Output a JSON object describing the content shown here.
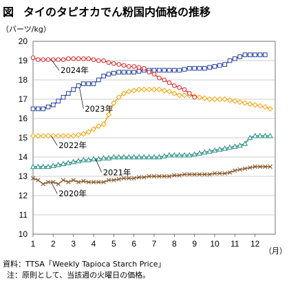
{
  "figure": {
    "label": "図",
    "title": "タイのタピオカでん粉国内価格の推移",
    "source_prefix": "資料：",
    "source": "TTSA「Weekly Tapioca Starch Price」",
    "note_prefix": "注：",
    "note": "原則として、当該週の火曜日の価格。"
  },
  "chart_data": {
    "type": "line",
    "title": "タイのタピオカでん粉国内価格の推移",
    "ylabel": "（バーツ/kg）",
    "xlabel": "（月）",
    "ylim": [
      10,
      20
    ],
    "yticks": [
      10,
      11,
      12,
      13,
      14,
      15,
      16,
      17,
      18,
      19,
      20
    ],
    "xlim": [
      1,
      13
    ],
    "xticks": [
      "1",
      "2",
      "3",
      "4",
      "5",
      "6",
      "7",
      "8",
      "9",
      "10",
      "11",
      "12"
    ],
    "grid": true,
    "legend": "inline labels",
    "series": [
      {
        "name": "2020年",
        "color": "#8B5A2B",
        "marker": "x",
        "points": [
          [
            1.0,
            12.9
          ],
          [
            1.25,
            12.8
          ],
          [
            1.5,
            12.6
          ],
          [
            1.75,
            12.7
          ],
          [
            2.0,
            12.7
          ],
          [
            2.25,
            12.6
          ],
          [
            2.5,
            12.8
          ],
          [
            2.75,
            12.7
          ],
          [
            3.0,
            12.8
          ],
          [
            3.25,
            12.7
          ],
          [
            3.5,
            12.75
          ],
          [
            3.75,
            12.7
          ],
          [
            4.0,
            12.7
          ],
          [
            4.25,
            12.7
          ],
          [
            4.5,
            12.7
          ],
          [
            4.75,
            12.8
          ],
          [
            5.0,
            12.8
          ],
          [
            5.25,
            12.85
          ],
          [
            5.5,
            12.9
          ],
          [
            5.75,
            12.9
          ],
          [
            6.0,
            12.9
          ],
          [
            6.25,
            12.95
          ],
          [
            6.5,
            12.95
          ],
          [
            6.75,
            13.0
          ],
          [
            7.0,
            13.0
          ],
          [
            7.25,
            13.0
          ],
          [
            7.5,
            13.0
          ],
          [
            7.75,
            13.0
          ],
          [
            8.0,
            13.05
          ],
          [
            8.25,
            13.05
          ],
          [
            8.5,
            13.1
          ],
          [
            8.75,
            13.1
          ],
          [
            9.0,
            13.1
          ],
          [
            9.25,
            13.1
          ],
          [
            9.5,
            13.1
          ],
          [
            9.75,
            13.1
          ],
          [
            10.0,
            13.15
          ],
          [
            10.25,
            13.15
          ],
          [
            10.5,
            13.15
          ],
          [
            10.75,
            13.2
          ],
          [
            11.0,
            13.3
          ],
          [
            11.25,
            13.35
          ],
          [
            11.5,
            13.4
          ],
          [
            11.75,
            13.45
          ],
          [
            12.0,
            13.5
          ],
          [
            12.25,
            13.5
          ],
          [
            12.5,
            13.5
          ],
          [
            12.75,
            13.5
          ]
        ]
      },
      {
        "name": "2021年",
        "color": "#1E8C7E",
        "marker": "triangle",
        "points": [
          [
            1.0,
            13.5
          ],
          [
            1.25,
            13.5
          ],
          [
            1.5,
            13.5
          ],
          [
            1.75,
            13.5
          ],
          [
            2.0,
            13.55
          ],
          [
            2.25,
            13.6
          ],
          [
            2.5,
            13.65
          ],
          [
            2.75,
            13.7
          ],
          [
            3.0,
            13.75
          ],
          [
            3.25,
            13.8
          ],
          [
            3.5,
            13.85
          ],
          [
            3.75,
            13.85
          ],
          [
            4.0,
            13.9
          ],
          [
            4.25,
            13.9
          ],
          [
            4.5,
            13.95
          ],
          [
            4.75,
            13.95
          ],
          [
            5.0,
            14.0
          ],
          [
            5.25,
            14.0
          ],
          [
            5.5,
            14.0
          ],
          [
            5.75,
            14.0
          ],
          [
            6.0,
            14.0
          ],
          [
            6.25,
            14.0
          ],
          [
            6.5,
            14.0
          ],
          [
            6.75,
            14.0
          ],
          [
            7.0,
            14.0
          ],
          [
            7.25,
            14.0
          ],
          [
            7.5,
            14.05
          ],
          [
            7.75,
            14.1
          ],
          [
            8.0,
            14.1
          ],
          [
            8.25,
            14.1
          ],
          [
            8.5,
            14.1
          ],
          [
            8.75,
            14.1
          ],
          [
            9.0,
            14.15
          ],
          [
            9.25,
            14.2
          ],
          [
            9.5,
            14.25
          ],
          [
            9.75,
            14.3
          ],
          [
            10.0,
            14.35
          ],
          [
            10.25,
            14.4
          ],
          [
            10.5,
            14.45
          ],
          [
            10.75,
            14.5
          ],
          [
            11.0,
            14.55
          ],
          [
            11.25,
            14.6
          ],
          [
            11.5,
            14.7
          ],
          [
            11.75,
            15.0
          ],
          [
            12.0,
            15.1
          ],
          [
            12.25,
            15.1
          ],
          [
            12.5,
            15.1
          ],
          [
            12.75,
            15.1
          ]
        ]
      },
      {
        "name": "2022年",
        "color": "#F5A000",
        "marker": "diamond",
        "points": [
          [
            1.0,
            15.1
          ],
          [
            1.25,
            15.1
          ],
          [
            1.5,
            15.1
          ],
          [
            1.75,
            15.1
          ],
          [
            2.0,
            15.1
          ],
          [
            2.25,
            15.1
          ],
          [
            2.5,
            15.1
          ],
          [
            2.75,
            15.1
          ],
          [
            3.0,
            15.1
          ],
          [
            3.25,
            15.15
          ],
          [
            3.5,
            15.2
          ],
          [
            3.75,
            15.3
          ],
          [
            4.0,
            15.45
          ],
          [
            4.25,
            15.6
          ],
          [
            4.5,
            15.7
          ],
          [
            4.75,
            16.2
          ],
          [
            5.0,
            16.8
          ],
          [
            5.25,
            17.1
          ],
          [
            5.5,
            17.3
          ],
          [
            5.75,
            17.4
          ],
          [
            6.0,
            17.45
          ],
          [
            6.25,
            17.5
          ],
          [
            6.5,
            17.5
          ],
          [
            6.75,
            17.5
          ],
          [
            7.0,
            17.5
          ],
          [
            7.25,
            17.5
          ],
          [
            7.5,
            17.45
          ],
          [
            7.75,
            17.4
          ],
          [
            8.0,
            17.3
          ],
          [
            8.25,
            17.2
          ],
          [
            8.5,
            17.2
          ],
          [
            8.75,
            17.2
          ],
          [
            9.0,
            17.15
          ],
          [
            9.25,
            17.1
          ],
          [
            9.5,
            17.05
          ],
          [
            9.75,
            17.0
          ],
          [
            10.0,
            17.0
          ],
          [
            10.25,
            17.0
          ],
          [
            10.5,
            17.0
          ],
          [
            10.75,
            16.95
          ],
          [
            11.0,
            16.9
          ],
          [
            11.25,
            16.85
          ],
          [
            11.5,
            16.8
          ],
          [
            11.75,
            16.75
          ],
          [
            12.0,
            16.7
          ],
          [
            12.25,
            16.65
          ],
          [
            12.5,
            16.6
          ],
          [
            12.75,
            16.5
          ]
        ]
      },
      {
        "name": "2023年",
        "color": "#1F3C9A",
        "marker": "square",
        "points": [
          [
            1.0,
            16.5
          ],
          [
            1.25,
            16.5
          ],
          [
            1.5,
            16.5
          ],
          [
            1.75,
            16.6
          ],
          [
            2.0,
            16.7
          ],
          [
            2.25,
            16.9
          ],
          [
            2.5,
            17.1
          ],
          [
            2.75,
            17.3
          ],
          [
            3.0,
            17.5
          ],
          [
            3.25,
            17.7
          ],
          [
            3.5,
            17.8
          ],
          [
            3.75,
            17.8
          ],
          [
            4.0,
            17.8
          ],
          [
            4.25,
            18.0
          ],
          [
            4.5,
            18.2
          ],
          [
            4.75,
            18.3
          ],
          [
            5.0,
            18.35
          ],
          [
            5.25,
            18.4
          ],
          [
            5.5,
            18.4
          ],
          [
            5.75,
            18.4
          ],
          [
            6.0,
            18.4
          ],
          [
            6.25,
            18.45
          ],
          [
            6.5,
            18.5
          ],
          [
            6.75,
            18.5
          ],
          [
            7.0,
            18.5
          ],
          [
            7.25,
            18.5
          ],
          [
            7.5,
            18.5
          ],
          [
            7.75,
            18.5
          ],
          [
            8.0,
            18.5
          ],
          [
            8.25,
            18.5
          ],
          [
            8.5,
            18.55
          ],
          [
            8.75,
            18.6
          ],
          [
            9.0,
            18.6
          ],
          [
            9.25,
            18.6
          ],
          [
            9.5,
            18.6
          ],
          [
            9.75,
            18.65
          ],
          [
            10.0,
            18.7
          ],
          [
            10.25,
            18.75
          ],
          [
            10.5,
            18.8
          ],
          [
            10.75,
            19.0
          ],
          [
            11.0,
            19.1
          ],
          [
            11.25,
            19.2
          ],
          [
            11.5,
            19.3
          ],
          [
            11.75,
            19.3
          ],
          [
            12.0,
            19.3
          ],
          [
            12.25,
            19.3
          ],
          [
            12.5,
            19.3
          ]
        ]
      },
      {
        "name": "2024年",
        "color": "#E02020",
        "marker": "circle",
        "points": [
          [
            1.0,
            19.15
          ],
          [
            1.25,
            19.05
          ],
          [
            1.5,
            19.05
          ],
          [
            1.75,
            19.05
          ],
          [
            2.0,
            19.05
          ],
          [
            2.25,
            19.05
          ],
          [
            2.5,
            19.05
          ],
          [
            2.75,
            19.1
          ],
          [
            3.0,
            19.1
          ],
          [
            3.25,
            19.1
          ],
          [
            3.5,
            19.1
          ],
          [
            3.75,
            19.1
          ],
          [
            4.0,
            19.05
          ],
          [
            4.25,
            19.0
          ],
          [
            4.5,
            19.0
          ],
          [
            4.75,
            18.9
          ],
          [
            5.0,
            18.85
          ],
          [
            5.25,
            18.8
          ],
          [
            5.5,
            18.75
          ],
          [
            5.75,
            18.7
          ],
          [
            6.0,
            18.7
          ],
          [
            6.25,
            18.65
          ],
          [
            6.5,
            18.6
          ],
          [
            6.75,
            18.4
          ],
          [
            7.0,
            18.3
          ],
          [
            7.25,
            18.1
          ],
          [
            7.5,
            18.0
          ],
          [
            7.75,
            17.85
          ],
          [
            8.0,
            17.7
          ],
          [
            8.25,
            17.6
          ],
          [
            8.5,
            17.5
          ],
          [
            8.75,
            17.3
          ],
          [
            9.0,
            17.1
          ]
        ]
      }
    ]
  }
}
